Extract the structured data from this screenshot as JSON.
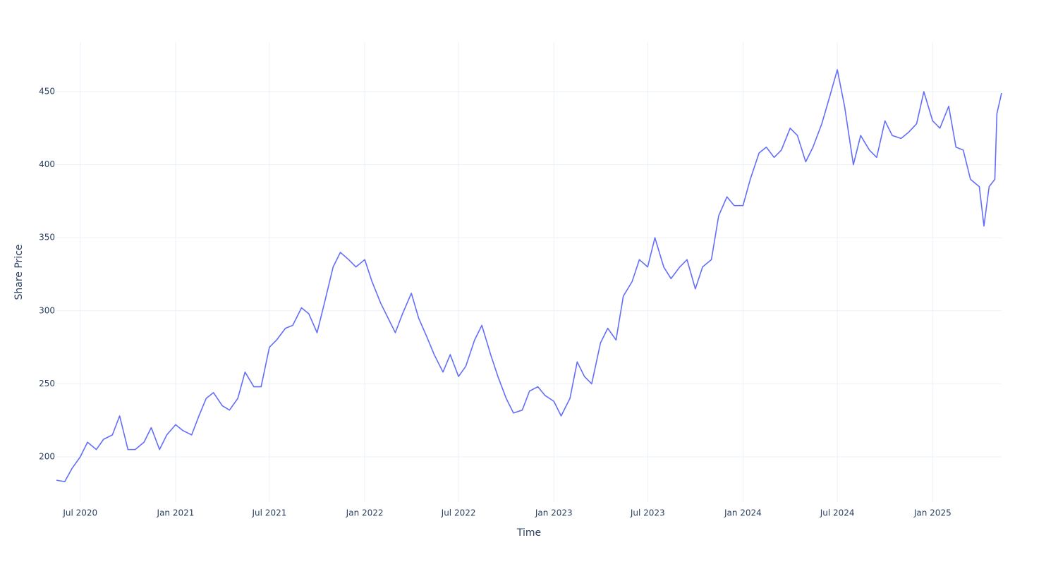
{
  "chart_data": {
    "type": "line",
    "x_label": "Time",
    "y_label": "Share Price",
    "color": "#636efa",
    "grid": true,
    "x": [
      "2020-05-16",
      "2020-06-01",
      "2020-06-15",
      "2020-07-01",
      "2020-07-15",
      "2020-08-01",
      "2020-08-15",
      "2020-09-01",
      "2020-09-15",
      "2020-10-01",
      "2020-10-15",
      "2020-11-01",
      "2020-11-15",
      "2020-12-01",
      "2020-12-15",
      "2021-01-01",
      "2021-01-15",
      "2021-02-01",
      "2021-02-15",
      "2021-03-01",
      "2021-03-15",
      "2021-04-01",
      "2021-04-15",
      "2021-05-01",
      "2021-05-15",
      "2021-06-01",
      "2021-06-15",
      "2021-07-01",
      "2021-07-15",
      "2021-08-01",
      "2021-08-15",
      "2021-09-01",
      "2021-09-15",
      "2021-10-01",
      "2021-10-15",
      "2021-11-01",
      "2021-11-15",
      "2021-12-01",
      "2021-12-15",
      "2022-01-01",
      "2022-01-15",
      "2022-02-01",
      "2022-02-15",
      "2022-03-01",
      "2022-03-15",
      "2022-04-01",
      "2022-04-15",
      "2022-05-01",
      "2022-05-15",
      "2022-06-01",
      "2022-06-15",
      "2022-07-01",
      "2022-07-15",
      "2022-08-01",
      "2022-08-15",
      "2022-09-01",
      "2022-09-15",
      "2022-10-01",
      "2022-10-15",
      "2022-11-01",
      "2022-11-15",
      "2022-12-01",
      "2022-12-15",
      "2023-01-01",
      "2023-01-15",
      "2023-02-01",
      "2023-02-15",
      "2023-03-01",
      "2023-03-15",
      "2023-04-01",
      "2023-04-15",
      "2023-05-01",
      "2023-05-15",
      "2023-06-01",
      "2023-06-15",
      "2023-07-01",
      "2023-07-15",
      "2023-08-01",
      "2023-08-15",
      "2023-09-01",
      "2023-09-15",
      "2023-10-01",
      "2023-10-15",
      "2023-11-01",
      "2023-11-15",
      "2023-12-01",
      "2023-12-15",
      "2024-01-01",
      "2024-01-15",
      "2024-02-01",
      "2024-02-15",
      "2024-03-01",
      "2024-03-15",
      "2024-04-01",
      "2024-04-15",
      "2024-05-01",
      "2024-05-15",
      "2024-06-01",
      "2024-06-15",
      "2024-07-01",
      "2024-07-15",
      "2024-08-01",
      "2024-08-15",
      "2024-09-01",
      "2024-09-15",
      "2024-10-01",
      "2024-10-15",
      "2024-11-01",
      "2024-11-15",
      "2024-12-01",
      "2024-12-15",
      "2025-01-01",
      "2025-01-15",
      "2025-02-01",
      "2025-02-15",
      "2025-03-01",
      "2025-03-15",
      "2025-04-01",
      "2025-04-10",
      "2025-04-20",
      "2025-05-01",
      "2025-05-05",
      "2025-05-14"
    ],
    "values": [
      184,
      183,
      192,
      200,
      210,
      205,
      212,
      215,
      228,
      205,
      205,
      210,
      220,
      205,
      215,
      222,
      218,
      215,
      228,
      240,
      244,
      235,
      232,
      240,
      258,
      248,
      248,
      275,
      280,
      288,
      290,
      302,
      298,
      285,
      305,
      330,
      340,
      335,
      330,
      335,
      320,
      305,
      295,
      285,
      298,
      312,
      295,
      282,
      270,
      258,
      270,
      255,
      262,
      280,
      290,
      270,
      255,
      240,
      230,
      232,
      245,
      248,
      242,
      238,
      228,
      240,
      265,
      255,
      250,
      278,
      288,
      280,
      310,
      320,
      335,
      330,
      350,
      330,
      322,
      330,
      335,
      315,
      330,
      335,
      365,
      378,
      372,
      372,
      390,
      408,
      412,
      405,
      410,
      425,
      420,
      402,
      412,
      428,
      445,
      465,
      440,
      400,
      420,
      410,
      405,
      430,
      420,
      418,
      422,
      428,
      450,
      430,
      425,
      440,
      412,
      410,
      390,
      385,
      358,
      385,
      390,
      435,
      449
    ],
    "xlim": [
      "2020-05-16",
      "2025-05-14"
    ],
    "xticks": [
      {
        "value": "2020-07-01",
        "label": "Jul 2020"
      },
      {
        "value": "2021-01-01",
        "label": "Jan 2021"
      },
      {
        "value": "2021-07-01",
        "label": "Jul 2021"
      },
      {
        "value": "2022-01-01",
        "label": "Jan 2022"
      },
      {
        "value": "2022-07-01",
        "label": "Jul 2022"
      },
      {
        "value": "2023-01-01",
        "label": "Jan 2023"
      },
      {
        "value": "2023-07-01",
        "label": "Jul 2023"
      },
      {
        "value": "2024-01-01",
        "label": "Jan 2024"
      },
      {
        "value": "2024-07-01",
        "label": "Jul 2024"
      },
      {
        "value": "2025-01-01",
        "label": "Jan 2025"
      }
    ],
    "ylim": [
      169.1,
      483.8
    ],
    "yticks": [
      200,
      250,
      300,
      350,
      400,
      450
    ]
  }
}
